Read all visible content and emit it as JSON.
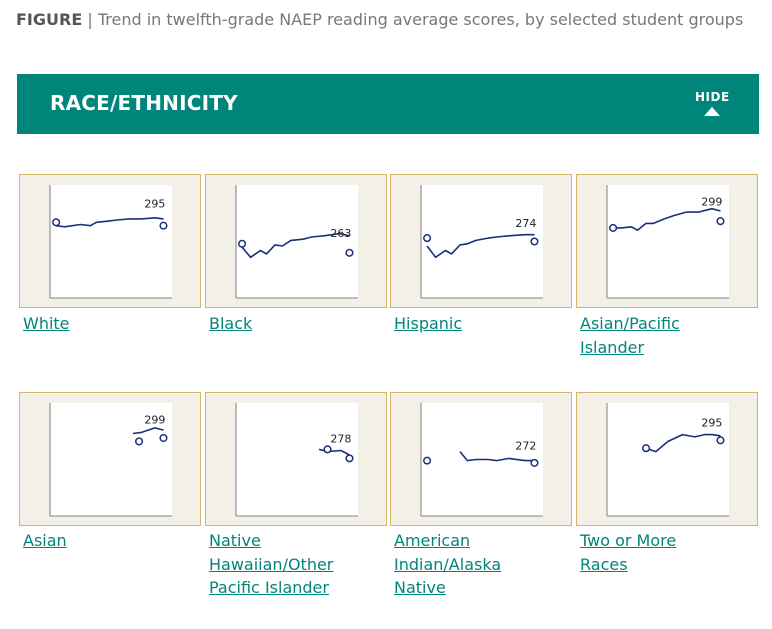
{
  "header": {
    "figure_label": "FIGURE",
    "separator": "|",
    "title": "Trend in twelfth-grade NAEP reading average scores, by selected student groups"
  },
  "section": {
    "heading": "RACE/ETHNICITY",
    "hide_label": "HIDE"
  },
  "colors": {
    "teal": "#00857a",
    "line": "#1a2f7a",
    "panel_bg": "#f3f0e8",
    "panel_border": "#d6b46a"
  },
  "chart_data": [
    {
      "type": "line",
      "group": "White",
      "label": "295",
      "ylim": [
        0,
        1
      ],
      "xlim": [
        0,
        1
      ],
      "series": [
        {
          "x": [
            0.05,
            0.12,
            0.25,
            0.33,
            0.38,
            0.47,
            0.55,
            0.65,
            0.75,
            0.86,
            0.93
          ],
          "y": [
            0.64,
            0.63,
            0.65,
            0.64,
            0.67,
            0.68,
            0.69,
            0.7,
            0.7,
            0.71,
            0.7
          ]
        }
      ],
      "markers": [
        {
          "x": 0.05,
          "y": 0.67
        },
        {
          "x": 0.93,
          "y": 0.64
        }
      ],
      "label_pos": {
        "x": 0.86,
        "y": 0.8
      }
    },
    {
      "type": "line",
      "group": "Black",
      "label": "263",
      "ylim": [
        0,
        1
      ],
      "xlim": [
        0,
        1
      ],
      "series": [
        {
          "x": [
            0.05,
            0.12,
            0.2,
            0.25,
            0.32,
            0.38,
            0.45,
            0.55,
            0.62,
            0.72,
            0.85,
            0.93
          ],
          "y": [
            0.45,
            0.36,
            0.42,
            0.39,
            0.47,
            0.46,
            0.51,
            0.52,
            0.54,
            0.55,
            0.57,
            0.55
          ]
        }
      ],
      "markers": [
        {
          "x": 0.05,
          "y": 0.48
        },
        {
          "x": 0.93,
          "y": 0.4
        }
      ],
      "label_pos": {
        "x": 0.86,
        "y": 0.54
      }
    },
    {
      "type": "line",
      "group": "Hispanic",
      "label": "274",
      "ylim": [
        0,
        1
      ],
      "xlim": [
        0,
        1
      ],
      "series": [
        {
          "x": [
            0.05,
            0.12,
            0.2,
            0.25,
            0.32,
            0.38,
            0.45,
            0.55,
            0.62,
            0.72,
            0.85,
            0.93
          ],
          "y": [
            0.46,
            0.36,
            0.42,
            0.39,
            0.47,
            0.48,
            0.51,
            0.53,
            0.54,
            0.55,
            0.56,
            0.56
          ]
        }
      ],
      "markers": [
        {
          "x": 0.05,
          "y": 0.53
        },
        {
          "x": 0.93,
          "y": 0.5
        }
      ],
      "label_pos": {
        "x": 0.86,
        "y": 0.63
      }
    },
    {
      "type": "line",
      "group": "Asian/Pacific Islander",
      "label": "299",
      "ylim": [
        0,
        1
      ],
      "xlim": [
        0,
        1
      ],
      "series": [
        {
          "x": [
            0.05,
            0.12,
            0.2,
            0.25,
            0.32,
            0.38,
            0.47,
            0.55,
            0.65,
            0.75,
            0.86,
            0.93
          ],
          "y": [
            0.62,
            0.62,
            0.63,
            0.6,
            0.66,
            0.66,
            0.7,
            0.73,
            0.76,
            0.76,
            0.79,
            0.77
          ]
        }
      ],
      "markers": [
        {
          "x": 0.05,
          "y": 0.62
        },
        {
          "x": 0.93,
          "y": 0.68
        }
      ],
      "label_pos": {
        "x": 0.86,
        "y": 0.82
      }
    },
    {
      "type": "line",
      "group": "Asian",
      "label": "299",
      "ylim": [
        0,
        1
      ],
      "xlim": [
        0,
        1
      ],
      "series": [
        {
          "x": [
            0.68,
            0.75,
            0.86,
            0.93
          ],
          "y": [
            0.73,
            0.74,
            0.78,
            0.76
          ]
        }
      ],
      "markers": [
        {
          "x": 0.73,
          "y": 0.66
        },
        {
          "x": 0.93,
          "y": 0.69
        }
      ],
      "label_pos": {
        "x": 0.86,
        "y": 0.82
      }
    },
    {
      "type": "line",
      "group": "Native Hawaiian/Other Pacific Islander",
      "label": "278",
      "ylim": [
        0,
        1
      ],
      "xlim": [
        0,
        1
      ],
      "series": [
        {
          "x": [
            0.68,
            0.75,
            0.86,
            0.93
          ],
          "y": [
            0.59,
            0.57,
            0.58,
            0.54
          ]
        }
      ],
      "markers": [
        {
          "x": 0.75,
          "y": 0.59
        },
        {
          "x": 0.93,
          "y": 0.51
        }
      ],
      "label_pos": {
        "x": 0.86,
        "y": 0.65
      }
    },
    {
      "type": "line",
      "group": "American Indian/Alaska Native",
      "label": "272",
      "ylim": [
        0,
        1
      ],
      "xlim": [
        0,
        1
      ],
      "series": [
        {
          "x": [
            0.32,
            0.38,
            0.45,
            0.55,
            0.62,
            0.72,
            0.85,
            0.93
          ],
          "y": [
            0.57,
            0.49,
            0.5,
            0.5,
            0.49,
            0.51,
            0.49,
            0.49
          ]
        }
      ],
      "markers": [
        {
          "x": 0.05,
          "y": 0.49
        },
        {
          "x": 0.93,
          "y": 0.47
        }
      ],
      "label_pos": {
        "x": 0.86,
        "y": 0.59
      }
    },
    {
      "type": "line",
      "group": "Two or More Races",
      "label": "295",
      "ylim": [
        0,
        1
      ],
      "xlim": [
        0,
        1
      ],
      "series": [
        {
          "x": [
            0.32,
            0.4,
            0.5,
            0.62,
            0.72,
            0.8,
            0.86,
            0.93
          ],
          "y": [
            0.6,
            0.57,
            0.66,
            0.72,
            0.7,
            0.72,
            0.72,
            0.71
          ]
        }
      ],
      "markers": [
        {
          "x": 0.32,
          "y": 0.6
        },
        {
          "x": 0.93,
          "y": 0.67
        }
      ],
      "label_pos": {
        "x": 0.86,
        "y": 0.79
      }
    }
  ],
  "groups": [
    {
      "label": "White"
    },
    {
      "label": "Black"
    },
    {
      "label": "Hispanic"
    },
    {
      "label": "Asian/Pacific Islander"
    },
    {
      "label": "Asian"
    },
    {
      "label": "Native Hawaiian/Other Pacific Islander"
    },
    {
      "label": "American Indian/Alaska Native"
    },
    {
      "label": "Two or More Races"
    }
  ]
}
